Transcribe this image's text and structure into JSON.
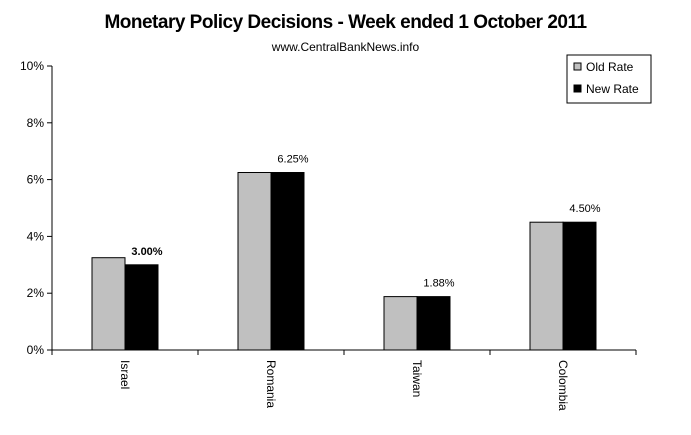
{
  "chart_data": {
    "type": "bar",
    "title": "Monetary Policy Decisions - Week ended 1 October 2011",
    "subtitle": "www.CentralBankNews.info",
    "xlabel": "",
    "ylabel": "",
    "ylim": [
      0,
      10
    ],
    "yticks": [
      "0%",
      "2%",
      "4%",
      "6%",
      "8%",
      "10%"
    ],
    "categories": [
      "Israel",
      "Romania",
      "Taiwan",
      "Colombia"
    ],
    "series": [
      {
        "name": "Old Rate",
        "color": "#c0c0c0",
        "values": [
          3.25,
          6.25,
          1.88,
          4.5
        ]
      },
      {
        "name": "New Rate",
        "color": "#000000",
        "values": [
          3.0,
          6.25,
          1.88,
          4.5
        ]
      }
    ],
    "data_labels": [
      "3.00%",
      "6.25%",
      "1.88%",
      "4.50%"
    ],
    "legend_position": "top-right",
    "grid": false
  }
}
